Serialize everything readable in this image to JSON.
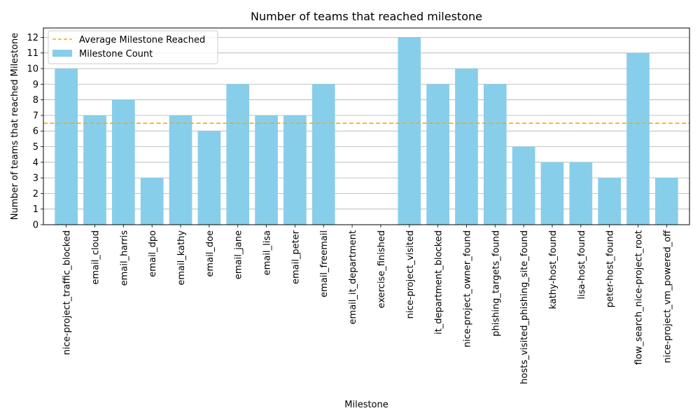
{
  "chart_data": {
    "type": "bar",
    "title": "Number of teams that reached milestone",
    "xlabel": "Milestone",
    "ylabel": "Number of teams that reached Milestone",
    "ylim": [
      0,
      12.6
    ],
    "yticks": [
      0,
      1,
      2,
      3,
      4,
      5,
      6,
      7,
      8,
      9,
      10,
      11,
      12
    ],
    "grid": "y",
    "legend_position": "top-left",
    "categories": [
      "nice-project_traffic_blocked",
      "email_cloud",
      "email_harris",
      "email_dpo",
      "email_kathy",
      "email_doe",
      "email_jane",
      "email_lisa",
      "email_peter",
      "email_freemail",
      "email_it_department",
      "exercise_finished",
      "nice-project_visited",
      "it_department_blocked",
      "nice-project_owner_found",
      "phishing_targets_found",
      "hosts_visited_phishing_site_found",
      "kathy-host_found",
      "lisa-host_found",
      "peter-host_found",
      "flow_search_nice-project_root",
      "nice-project_vm_powered_off"
    ],
    "series": [
      {
        "name": "Milestone Count",
        "color": "#87ceeb",
        "values": [
          10,
          7,
          8,
          3,
          7,
          6,
          9,
          7,
          7,
          9,
          0,
          0,
          12,
          9,
          10,
          9,
          5,
          4,
          4,
          3,
          11,
          3
        ]
      }
    ],
    "average_line": {
      "name": "Average Milestone Reached",
      "value": 6.5,
      "color": "#ffa500",
      "style": "dashed"
    }
  }
}
